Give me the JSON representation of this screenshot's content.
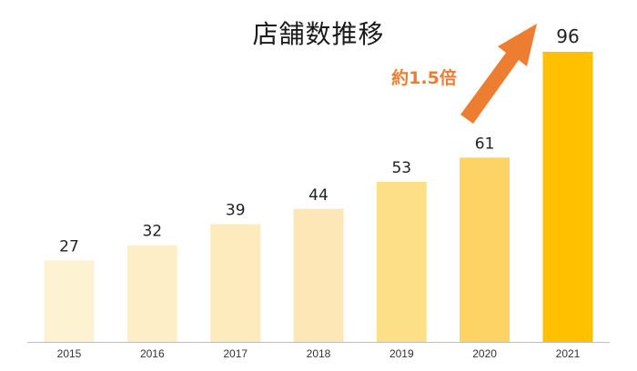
{
  "chart_data": {
    "type": "bar",
    "title": "店舗数推移",
    "categories": [
      "2015",
      "2016",
      "2017",
      "2018",
      "2019",
      "2020",
      "2021"
    ],
    "values": [
      27,
      32,
      39,
      44,
      53,
      61,
      96
    ],
    "ylim": [
      0,
      100
    ],
    "grid": false,
    "legend": "none",
    "bar_colors": [
      "#fdf2d2",
      "#fdeec8",
      "#fdeabd",
      "#fde7b6",
      "#fddf87",
      "#fdd365",
      "#ffc000"
    ],
    "annotation": {
      "text": "約1.5倍",
      "color": "#ed7d31"
    }
  }
}
